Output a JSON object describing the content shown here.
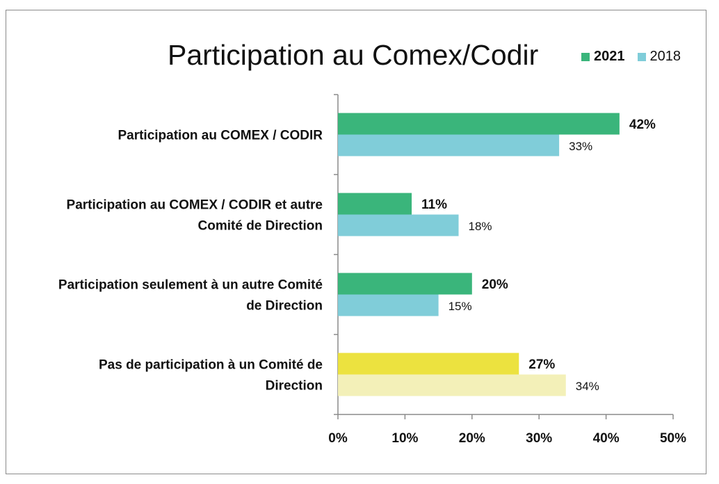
{
  "chart_data": {
    "type": "bar",
    "orientation": "horizontal",
    "title": "Participation au Comex/Codir",
    "categories": [
      [
        "Participation au COMEX / CODIR"
      ],
      [
        "Participation au COMEX / CODIR et autre",
        "Comité de Direction"
      ],
      [
        "Participation seulement à un autre Comité",
        "de Direction"
      ],
      [
        "Pas de participation à un Comité de",
        "Direction"
      ]
    ],
    "series": [
      {
        "name": "2021",
        "values": [
          42,
          11,
          20,
          27
        ],
        "labels": [
          "42%",
          "11%",
          "20%",
          "27%"
        ],
        "colors": [
          "#3ab57b",
          "#3ab57b",
          "#3ab57b",
          "#ece23f"
        ]
      },
      {
        "name": "2018",
        "values": [
          33,
          18,
          15,
          34
        ],
        "labels": [
          "33%",
          "18%",
          "15%",
          "34%"
        ],
        "colors": [
          "#80cdd9",
          "#80cdd9",
          "#80cdd9",
          "#f3f0b8"
        ]
      }
    ],
    "xlim": [
      0,
      50
    ],
    "xticks": [
      "0%",
      "10%",
      "20%",
      "30%",
      "40%",
      "50%"
    ],
    "legend_position": "top-right",
    "grid": false
  },
  "legend": {
    "items": [
      {
        "label": "2021",
        "color": "#3ab57b"
      },
      {
        "label": "2018",
        "color": "#80cdd9"
      }
    ]
  }
}
